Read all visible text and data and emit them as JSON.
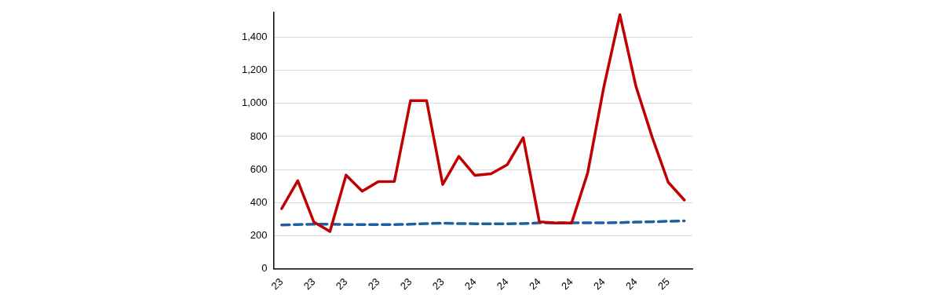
{
  "chart_data": {
    "type": "line",
    "categories": [
      "23",
      null,
      "23",
      null,
      "23",
      null,
      "23",
      null,
      "23",
      null,
      "23",
      null,
      "24",
      null,
      "24",
      null,
      "24",
      null,
      "24",
      null,
      "24",
      null,
      "24",
      null,
      "25",
      null
    ],
    "series": [
      {
        "color": "#c00000",
        "line_style": "solid",
        "values": [
          364,
          533,
          283,
          226,
          567,
          469,
          527,
          529,
          1017,
          1017,
          510,
          680,
          565,
          575,
          629,
          793,
          285,
          277,
          277,
          580,
          1098,
          1536,
          1102,
          797,
          524,
          416
        ]
      },
      {
        "color": "#1f5f9e",
        "line_style": "dashed",
        "values": [
          266,
          268,
          270,
          270,
          268,
          268,
          268,
          268,
          270,
          274,
          276,
          274,
          273,
          273,
          273,
          274,
          278,
          278,
          278,
          278,
          278,
          280,
          283,
          285,
          288,
          290
        ]
      }
    ],
    "ylim": [
      0,
      1550
    ],
    "yticks": [
      0,
      200,
      400,
      600,
      800,
      {
        "value": 1000,
        "label": "1,000"
      },
      {
        "value": 1200,
        "label": "1,200"
      },
      {
        "value": 1400,
        "label": "1,400"
      }
    ],
    "grid": "y",
    "legend": false,
    "marker": "none"
  }
}
